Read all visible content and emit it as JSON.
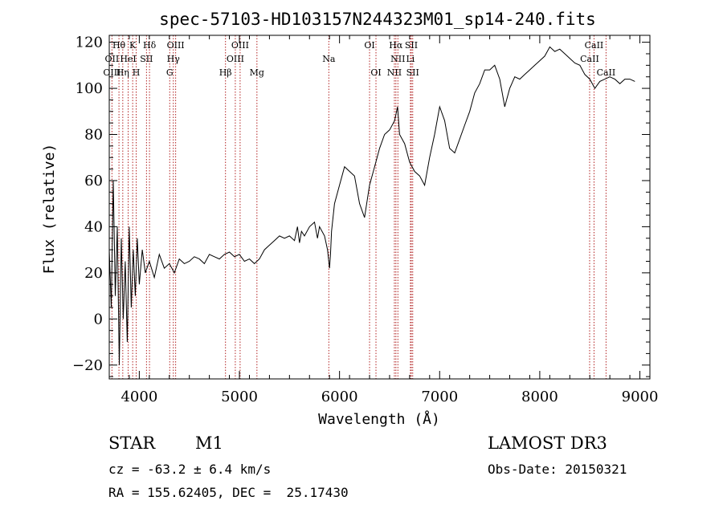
{
  "chart_data": {
    "type": "line",
    "title": "spec-57103-HD103157N244323M01_sp14-240.fits",
    "xlabel": "Wavelength (Å)",
    "ylabel": "Flux (relative)",
    "xlim": [
      3700,
      9100
    ],
    "ylim": [
      -26,
      123
    ],
    "xticks": [
      4000,
      5000,
      6000,
      7000,
      8000,
      9000
    ],
    "yticks": [
      -20,
      0,
      20,
      40,
      60,
      80,
      100,
      120
    ],
    "series": [
      {
        "name": "flux",
        "x": [
          3700,
          3720,
          3740,
          3760,
          3780,
          3800,
          3820,
          3840,
          3860,
          3880,
          3900,
          3920,
          3940,
          3960,
          3980,
          4000,
          4030,
          4060,
          4100,
          4150,
          4200,
          4250,
          4300,
          4350,
          4400,
          4450,
          4500,
          4550,
          4600,
          4650,
          4700,
          4750,
          4800,
          4850,
          4900,
          4950,
          5000,
          5050,
          5100,
          5150,
          5200,
          5250,
          5300,
          5350,
          5400,
          5450,
          5500,
          5550,
          5580,
          5600,
          5620,
          5650,
          5700,
          5750,
          5780,
          5800,
          5850,
          5880,
          5900,
          5910,
          5920,
          5950,
          6000,
          6050,
          6100,
          6150,
          6200,
          6250,
          6300,
          6350,
          6400,
          6450,
          6500,
          6550,
          6580,
          6600,
          6650,
          6700,
          6750,
          6800,
          6850,
          6900,
          6950,
          7000,
          7050,
          7100,
          7150,
          7200,
          7250,
          7300,
          7350,
          7400,
          7450,
          7500,
          7550,
          7600,
          7650,
          7700,
          7750,
          7800,
          7850,
          7900,
          7950,
          8000,
          8050,
          8100,
          8150,
          8200,
          8250,
          8300,
          8350,
          8400,
          8450,
          8500,
          8550,
          8600,
          8650,
          8700,
          8750,
          8800,
          8850,
          8900,
          8950
        ],
        "values": [
          30,
          5,
          60,
          10,
          40,
          -20,
          35,
          0,
          25,
          -10,
          40,
          5,
          30,
          10,
          35,
          15,
          30,
          20,
          25,
          18,
          28,
          22,
          24,
          20,
          26,
          24,
          25,
          27,
          26,
          24,
          28,
          27,
          26,
          28,
          29,
          27,
          28,
          25,
          26,
          24,
          26,
          30,
          32,
          34,
          36,
          35,
          36,
          34,
          40,
          33,
          38,
          36,
          40,
          42,
          35,
          40,
          36,
          30,
          22,
          28,
          38,
          50,
          58,
          66,
          64,
          62,
          50,
          44,
          58,
          66,
          74,
          80,
          82,
          86,
          92,
          80,
          76,
          68,
          64,
          62,
          58,
          70,
          80,
          92,
          86,
          74,
          72,
          78,
          84,
          90,
          98,
          102,
          108,
          108,
          110,
          104,
          92,
          100,
          105,
          104,
          106,
          108,
          110,
          112,
          114,
          118,
          116,
          117,
          115,
          113,
          111,
          110,
          106,
          104,
          100,
          103,
          104,
          105,
          104,
          102,
          104,
          104,
          103
        ]
      }
    ],
    "line_labels": [
      {
        "label": "Hθ",
        "x": 3797,
        "row": 1
      },
      {
        "label": "K",
        "x": 3934,
        "row": 1
      },
      {
        "label": "Hδ",
        "x": 4102,
        "row": 1
      },
      {
        "label": "OIII",
        "x": 4363,
        "row": 1
      },
      {
        "label": "OIII",
        "x": 5007,
        "row": 1
      },
      {
        "label": "OI",
        "x": 6300,
        "row": 1
      },
      {
        "label": "Hα",
        "x": 6563,
        "row": 1
      },
      {
        "label": "SII",
        "x": 6717,
        "row": 1
      },
      {
        "label": "CaII",
        "x": 8542,
        "row": 1
      },
      {
        "label": "OII",
        "x": 3727,
        "row": 2
      },
      {
        "label": "HeI",
        "x": 3889,
        "row": 2
      },
      {
        "label": "SII",
        "x": 4072,
        "row": 2
      },
      {
        "label": "Hγ",
        "x": 4340,
        "row": 2
      },
      {
        "label": "OIII",
        "x": 4959,
        "row": 2
      },
      {
        "label": "Na",
        "x": 5893,
        "row": 2
      },
      {
        "label": "NII",
        "x": 6583,
        "row": 2
      },
      {
        "label": "Li",
        "x": 6708,
        "row": 2
      },
      {
        "label": "CaII",
        "x": 8498,
        "row": 2
      },
      {
        "label": "OIII",
        "x": 3727,
        "row": 3
      },
      {
        "label": "Hη",
        "x": 3835,
        "row": 3
      },
      {
        "label": "H",
        "x": 3969,
        "row": 3
      },
      {
        "label": "G",
        "x": 4304,
        "row": 3
      },
      {
        "label": "Hβ",
        "x": 4861,
        "row": 3
      },
      {
        "label": "Mg",
        "x": 5175,
        "row": 3
      },
      {
        "label": "OI",
        "x": 6364,
        "row": 3
      },
      {
        "label": "NII",
        "x": 6548,
        "row": 3
      },
      {
        "label": "SII",
        "x": 6731,
        "row": 3
      },
      {
        "label": "CaII",
        "x": 8662,
        "row": 3
      }
    ],
    "line_markers_x": [
      3727,
      3797,
      3835,
      3889,
      3934,
      3969,
      4072,
      4102,
      4304,
      4340,
      4363,
      4861,
      4959,
      5007,
      5175,
      5893,
      6300,
      6364,
      6548,
      6563,
      6583,
      6708,
      6717,
      6731,
      8498,
      8542,
      8662
    ]
  },
  "info": {
    "object_type": "STAR",
    "subclass": "M1",
    "survey": "LAMOST DR3",
    "cz": "cz = -63.2 ± 6.4 km/s",
    "obs_date": "Obs-Date: 20150321",
    "coords": "RA = 155.62405, DEC =  25.17430"
  }
}
